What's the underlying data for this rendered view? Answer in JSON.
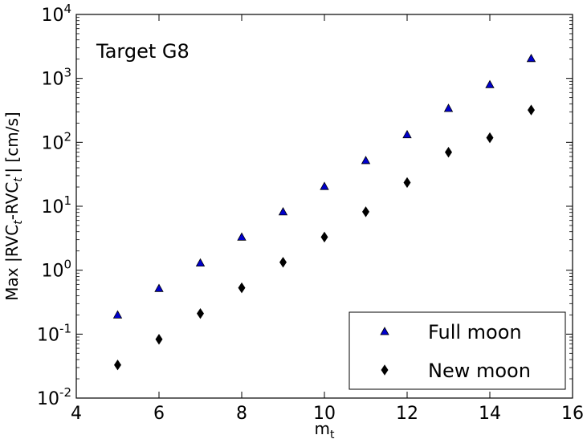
{
  "chart_data": {
    "type": "scatter",
    "annotation": "Target G8",
    "xlabel": {
      "base": "m",
      "sub": "t"
    },
    "ylabel": {
      "parts": [
        {
          "t": "Max |RVC",
          "s": "n"
        },
        {
          "t": "t",
          "s": "sub"
        },
        {
          "t": "-RVC",
          "s": "n"
        },
        {
          "t": "t",
          "s": "sub"
        },
        {
          "t": "'| [cm/s]",
          "s": "n"
        }
      ]
    },
    "xlim": [
      4,
      16
    ],
    "ylim": [
      0.01,
      10000
    ],
    "yscale": "log",
    "xticks": [
      4,
      6,
      8,
      10,
      12,
      14,
      16
    ],
    "xtick_labels": [
      "4",
      "6",
      "8",
      "10",
      "12",
      "14",
      "16"
    ],
    "yticks": [
      {
        "value": 0.01,
        "base": "10",
        "exp": "-2"
      },
      {
        "value": 0.1,
        "base": "10",
        "exp": "-1"
      },
      {
        "value": 1,
        "base": "10",
        "exp": "0"
      },
      {
        "value": 10,
        "base": "10",
        "exp": "1"
      },
      {
        "value": 100,
        "base": "10",
        "exp": "2"
      },
      {
        "value": 1000,
        "base": "10",
        "exp": "3"
      },
      {
        "value": 10000,
        "base": "10",
        "exp": "4"
      }
    ],
    "grid": false,
    "legend_position": "bottom-right",
    "series": [
      {
        "name": "Full moon",
        "marker": "triangle",
        "color": "#0000cc",
        "x": [
          5,
          6,
          7,
          8,
          9,
          10,
          11,
          12,
          13,
          14,
          15
        ],
        "y": [
          0.2,
          0.52,
          1.3,
          3.3,
          8.2,
          20.5,
          52,
          132,
          340,
          800,
          2050
        ]
      },
      {
        "name": "New moon",
        "marker": "diamond",
        "color": "#000000",
        "x": [
          5,
          6,
          7,
          8,
          9,
          10,
          11,
          12,
          13,
          14,
          15
        ],
        "y": [
          0.033,
          0.083,
          0.21,
          0.53,
          1.33,
          3.3,
          8.2,
          23.5,
          70,
          118,
          320
        ]
      }
    ]
  }
}
